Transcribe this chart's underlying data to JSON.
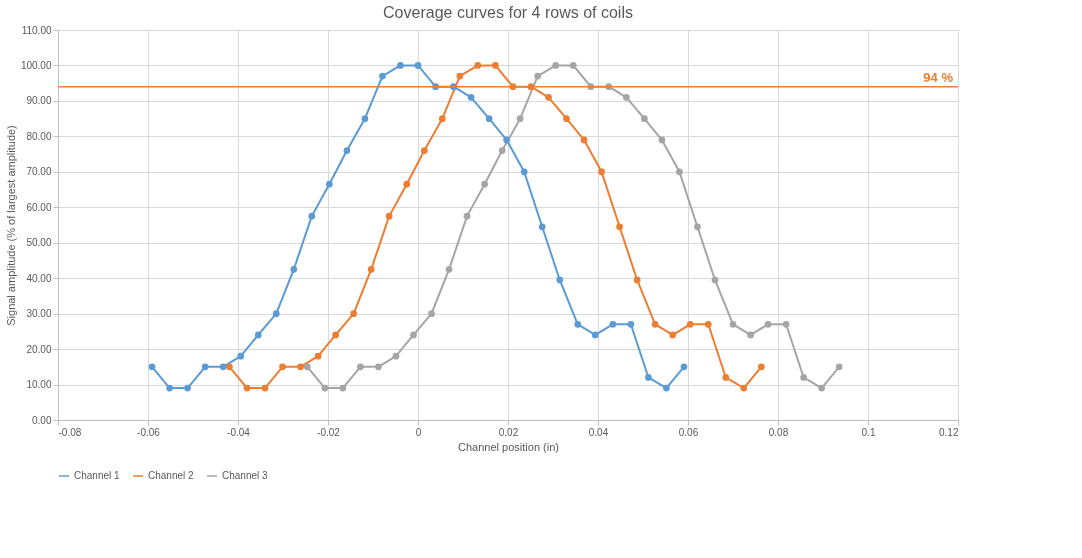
{
  "chart_data": {
    "type": "line",
    "title": "Coverage curves for 4 rows of coils",
    "xlabel": "Channel position (in)",
    "ylabel": "Signal amplitude (% of largest amplitude)",
    "xlim": [
      -0.08,
      0.12
    ],
    "xticks": [
      -0.08,
      -0.06,
      -0.04,
      -0.02,
      0,
      0.02,
      0.04,
      0.06,
      0.08,
      0.1,
      0.12
    ],
    "ylim": [
      0,
      110
    ],
    "yticks": [
      {
        "value": 0,
        "label": "0.00"
      },
      {
        "value": 10,
        "label": "10.00"
      },
      {
        "value": 20,
        "label": "20.00"
      },
      {
        "value": 30,
        "label": "30.00"
      },
      {
        "value": 40,
        "label": "40.00"
      },
      {
        "value": 50,
        "label": "50.00"
      },
      {
        "value": 60,
        "label": "60.00"
      },
      {
        "value": 70,
        "label": "70.00"
      },
      {
        "value": 80,
        "label": "80.00"
      },
      {
        "value": 90,
        "label": "90.00"
      },
      {
        "value": 100,
        "label": "100.00"
      },
      {
        "value": 110,
        "label": "110.00"
      }
    ],
    "grid": true,
    "legend": "bottom",
    "marker": "circle",
    "line_style": "solid",
    "ref_lines": [
      {
        "axis": "y",
        "value": 94,
        "label": "94 %",
        "color": "#ed7d31"
      }
    ],
    "series": [
      {
        "name": "Channel 1",
        "color": "#5b9bd5",
        "x": [
          -0.0591,
          -0.0552,
          -0.0512,
          -0.0473,
          -0.0433,
          -0.0394,
          -0.0355,
          -0.0315,
          -0.0276,
          -0.0236,
          -0.0197,
          -0.0158,
          -0.0118,
          -0.0079,
          -0.0039,
          0,
          0.0039,
          0.0079,
          0.0118,
          0.0158,
          0.0197,
          0.0236,
          0.0276,
          0.0315,
          0.0355,
          0.0394,
          0.0433,
          0.0473,
          0.0512,
          0.0552,
          0.0591
        ],
        "values": [
          15,
          9,
          9,
          15,
          15,
          18,
          24,
          30,
          42.5,
          57.5,
          66.5,
          76,
          85,
          97,
          100,
          100,
          94,
          94,
          91,
          85,
          79,
          70,
          54.5,
          39.5,
          27,
          24,
          27,
          27,
          12,
          9,
          15
        ]
      },
      {
        "name": "Channel 2",
        "color": "#ed7d31",
        "x": [
          -0.0419,
          -0.038,
          -0.034,
          -0.0301,
          -0.0261,
          -0.0222,
          -0.0183,
          -0.0143,
          -0.0104,
          -0.0064,
          -0.0025,
          0.0014,
          0.0054,
          0.0093,
          0.0133,
          0.0172,
          0.0211,
          0.0251,
          0.029,
          0.033,
          0.0369,
          0.0408,
          0.0448,
          0.0487,
          0.0527,
          0.0566,
          0.0605,
          0.0645,
          0.0684,
          0.0724,
          0.0763
        ],
        "values": [
          15,
          9,
          9,
          15,
          15,
          18,
          24,
          30,
          42.5,
          57.5,
          66.5,
          76,
          85,
          97,
          100,
          100,
          94,
          94,
          91,
          85,
          79,
          70,
          54.5,
          39.5,
          27,
          24,
          27,
          27,
          12,
          9,
          15
        ]
      },
      {
        "name": "Channel 3",
        "color": "#a5a5a5",
        "x": [
          -0.0246,
          -0.0207,
          -0.0167,
          -0.0128,
          -0.0088,
          -0.0049,
          -0.001,
          0.003,
          0.0069,
          0.0109,
          0.0148,
          0.0187,
          0.0227,
          0.0266,
          0.0306,
          0.0345,
          0.0384,
          0.0424,
          0.0463,
          0.0503,
          0.0542,
          0.0581,
          0.0621,
          0.066,
          0.07,
          0.0739,
          0.0778,
          0.0818,
          0.0857,
          0.0897,
          0.0936
        ],
        "values": [
          15,
          9,
          9,
          15,
          15,
          18,
          24,
          30,
          42.5,
          57.5,
          66.5,
          76,
          85,
          97,
          100,
          100,
          94,
          94,
          91,
          85,
          79,
          70,
          54.5,
          39.5,
          27,
          24,
          27,
          27,
          12,
          9,
          15
        ]
      }
    ]
  }
}
